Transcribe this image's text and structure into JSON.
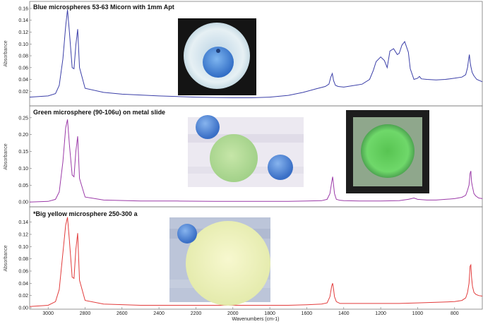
{
  "chart_data": [
    {
      "type": "line",
      "title": "Blue microspheres 53-63 Micorn  with 1mm Apt",
      "ylabel": "Absorbance",
      "ylim": [
        0.0,
        0.16
      ],
      "yticks": [
        "0.16",
        "0.14",
        "0.12",
        "0.10",
        "0.08",
        "0.06",
        "0.04",
        "0.02"
      ],
      "color": "#3b3fa8",
      "x": [
        3100,
        3000,
        2960,
        2940,
        2920,
        2905,
        2895,
        2885,
        2870,
        2860,
        2850,
        2840,
        2830,
        2800,
        2700,
        2600,
        2400,
        2200,
        2000,
        1900,
        1800,
        1700,
        1620,
        1550,
        1500,
        1480,
        1470,
        1462,
        1455,
        1445,
        1430,
        1400,
        1300,
        1260,
        1240,
        1225,
        1200,
        1180,
        1165,
        1150,
        1130,
        1110,
        1100,
        1085,
        1070,
        1050,
        1040,
        1020,
        1000,
        990,
        980,
        950,
        900,
        850,
        800,
        760,
        740,
        730,
        725,
        720,
        716,
        712,
        705,
        695,
        680,
        650
      ],
      "y": [
        0.01,
        0.012,
        0.016,
        0.03,
        0.075,
        0.13,
        0.158,
        0.12,
        0.06,
        0.058,
        0.098,
        0.125,
        0.06,
        0.025,
        0.018,
        0.015,
        0.012,
        0.01,
        0.009,
        0.009,
        0.01,
        0.013,
        0.018,
        0.024,
        0.028,
        0.032,
        0.044,
        0.05,
        0.038,
        0.03,
        0.028,
        0.027,
        0.032,
        0.04,
        0.055,
        0.07,
        0.078,
        0.072,
        0.06,
        0.088,
        0.092,
        0.082,
        0.084,
        0.098,
        0.104,
        0.086,
        0.058,
        0.04,
        0.042,
        0.045,
        0.041,
        0.04,
        0.039,
        0.04,
        0.042,
        0.044,
        0.048,
        0.06,
        0.072,
        0.082,
        0.07,
        0.062,
        0.052,
        0.046,
        0.04,
        0.036
      ]
    },
    {
      "type": "line",
      "title": "Green microsphere (90-106u) on metal slide",
      "ylabel": "Absorbance",
      "ylim": [
        -0.01,
        0.26
      ],
      "yticks": [
        "0.25",
        "0.20",
        "0.15",
        "0.10",
        "0.05",
        "0.00"
      ],
      "color": "#9b3aa8",
      "x": [
        3100,
        3000,
        2960,
        2940,
        2920,
        2905,
        2895,
        2885,
        2870,
        2860,
        2850,
        2840,
        2830,
        2800,
        2700,
        2500,
        2300,
        2100,
        1900,
        1700,
        1600,
        1520,
        1490,
        1475,
        1465,
        1460,
        1455,
        1450,
        1440,
        1420,
        1400,
        1300,
        1200,
        1100,
        1050,
        1020,
        1000,
        950,
        900,
        850,
        800,
        760,
        740,
        730,
        722,
        716,
        712,
        708,
        703,
        695,
        685,
        670,
        650
      ],
      "y": [
        0.0,
        0.002,
        0.008,
        0.03,
        0.12,
        0.22,
        0.245,
        0.17,
        0.08,
        0.075,
        0.15,
        0.195,
        0.07,
        0.015,
        0.006,
        0.003,
        0.003,
        0.002,
        0.002,
        0.002,
        0.003,
        0.004,
        0.008,
        0.025,
        0.06,
        0.075,
        0.05,
        0.025,
        0.008,
        0.005,
        0.004,
        0.003,
        0.003,
        0.004,
        0.008,
        0.012,
        0.008,
        0.006,
        0.006,
        0.008,
        0.01,
        0.014,
        0.02,
        0.035,
        0.05,
        0.085,
        0.092,
        0.06,
        0.045,
        0.025,
        0.018,
        0.012,
        0.01
      ]
    },
    {
      "type": "line",
      "title": "*Big yellow microsphere 250-300 a",
      "ylabel": "Absorbance",
      "ylim": [
        0.0,
        0.15
      ],
      "yticks": [
        "0.14",
        "0.12",
        "0.10",
        "0.08",
        "0.06",
        "0.04",
        "0.02",
        "0.00"
      ],
      "color": "#e23b3b",
      "x": [
        3100,
        3000,
        2960,
        2940,
        2920,
        2905,
        2895,
        2885,
        2870,
        2860,
        2850,
        2840,
        2830,
        2800,
        2700,
        2500,
        2300,
        2100,
        1900,
        1700,
        1600,
        1520,
        1490,
        1475,
        1465,
        1460,
        1455,
        1450,
        1440,
        1420,
        1400,
        1300,
        1200,
        1100,
        1000,
        900,
        800,
        760,
        740,
        730,
        722,
        716,
        712,
        708,
        703,
        695,
        685,
        670,
        650
      ],
      "y": [
        0.002,
        0.004,
        0.01,
        0.03,
        0.09,
        0.135,
        0.148,
        0.11,
        0.05,
        0.048,
        0.095,
        0.122,
        0.045,
        0.012,
        0.006,
        0.004,
        0.004,
        0.004,
        0.004,
        0.004,
        0.005,
        0.006,
        0.008,
        0.018,
        0.036,
        0.04,
        0.03,
        0.018,
        0.01,
        0.007,
        0.007,
        0.007,
        0.007,
        0.007,
        0.008,
        0.009,
        0.01,
        0.012,
        0.016,
        0.025,
        0.04,
        0.068,
        0.07,
        0.05,
        0.035,
        0.025,
        0.022,
        0.02,
        0.019
      ]
    }
  ],
  "shared_x": {
    "xlabel": "Wavenumbers (cm-1)",
    "xlim": [
      3100,
      650
    ],
    "ticks": [
      3000,
      2800,
      2600,
      2400,
      2200,
      2000,
      1800,
      1600,
      1400,
      1200,
      1000,
      800
    ]
  },
  "insets": [
    {
      "description_color_border": "#141414",
      "sphere_color": "#4a90e0",
      "ring_color": "#d8e6ec"
    },
    {
      "small_sphere_color": "#4e82d6",
      "large_sphere_color": "#b6dc9c",
      "background": "#e8e4ee"
    },
    {
      "border_color": "#1d1d1d",
      "inner_color": "#9fb79a",
      "sphere_color": "#62d25a"
    },
    {
      "small_sphere_color": "#4f86d8",
      "large_sphere_color": "#eef0b8",
      "background": "#b9c3d8"
    }
  ]
}
